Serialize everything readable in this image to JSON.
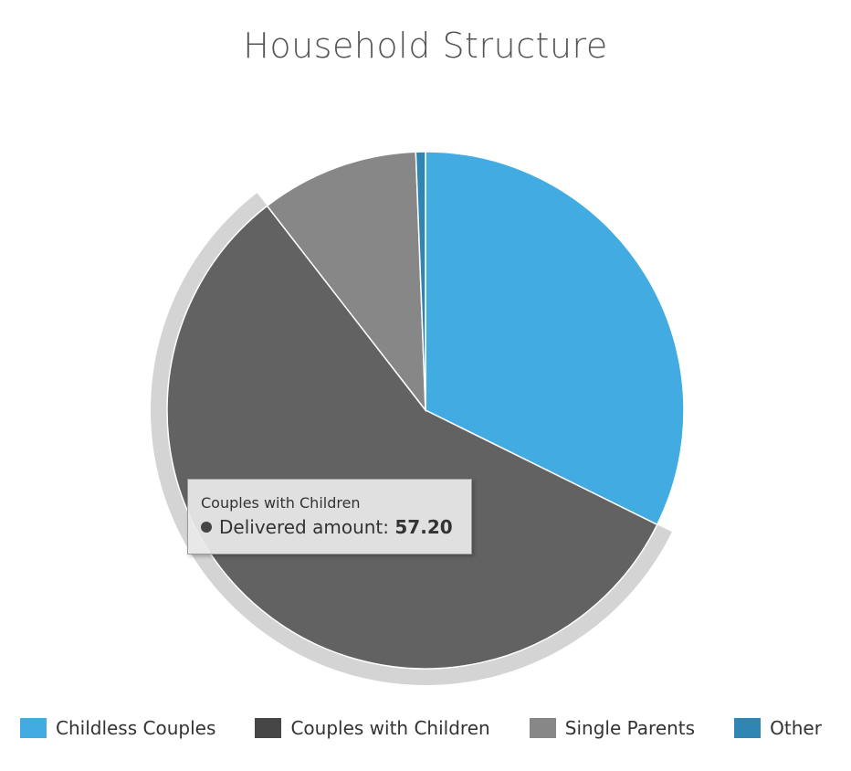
{
  "chart_data": {
    "type": "pie",
    "title": "Household Structure",
    "series_name": "Delivered amount",
    "categories": [
      "Childless Couples",
      "Couples with Children",
      "Single Parents",
      "Other"
    ],
    "values": [
      32.3,
      57.2,
      9.9,
      0.6
    ],
    "colors": [
      "#42abe1",
      "#626262",
      "#878787",
      "#2f86b3"
    ],
    "hovered_index": 1,
    "legend_position": "bottom"
  },
  "tooltip": {
    "series": "Couples with Children",
    "label": "Delivered amount",
    "separator": ":",
    "value": "57.20"
  },
  "legend": {
    "items": [
      {
        "label": "Childless Couples",
        "color": "#42abe1"
      },
      {
        "label": "Couples with Children",
        "color": "#464646"
      },
      {
        "label": "Single Parents",
        "color": "#878787"
      },
      {
        "label": "Other",
        "color": "#2f86b3"
      }
    ]
  }
}
